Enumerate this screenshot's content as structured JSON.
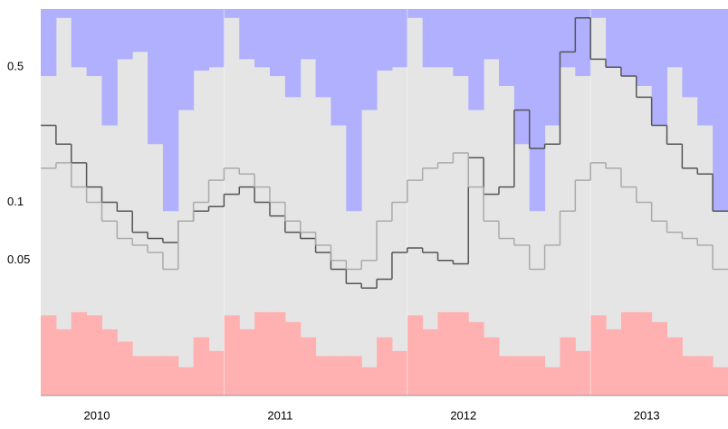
{
  "chart_data": {
    "type": "step",
    "log_y": true,
    "ylim": [
      0.01,
      1
    ],
    "yticks": [
      0.05,
      0.1,
      0.5
    ],
    "xlim": [
      2010,
      2013.75
    ],
    "xticks": [
      2010,
      2011,
      2012,
      2013
    ],
    "background": "#e5e5e5",
    "series": [
      {
        "fill": "above",
        "color": "#b0b0ff",
        "values": [
          0.45,
          0.9,
          0.5,
          0.45,
          0.25,
          0.55,
          0.6,
          0.2,
          0.09,
          0.3,
          0.48,
          0.5,
          0.9,
          0.55,
          0.5,
          0.45,
          0.35,
          0.55,
          0.35,
          0.25,
          0.09,
          0.3,
          0.48,
          0.5,
          0.9,
          0.5,
          0.5,
          0.45,
          0.3,
          0.55,
          0.4,
          0.2,
          0.09,
          0.25,
          0.5,
          0.45,
          0.9,
          0.5,
          0.45,
          0.4,
          0.25,
          0.5,
          0.35,
          0.25,
          0.09
        ]
      },
      {
        "fill": "below",
        "color": "#ffb0b0",
        "values": [
          0.026,
          0.022,
          0.027,
          0.026,
          0.022,
          0.019,
          0.016,
          0.016,
          0.016,
          0.014,
          0.02,
          0.017,
          0.026,
          0.022,
          0.027,
          0.027,
          0.024,
          0.02,
          0.016,
          0.016,
          0.016,
          0.014,
          0.02,
          0.017,
          0.026,
          0.022,
          0.027,
          0.027,
          0.024,
          0.02,
          0.016,
          0.016,
          0.016,
          0.014,
          0.02,
          0.017,
          0.026,
          0.022,
          0.027,
          0.027,
          0.024,
          0.02,
          0.016,
          0.016,
          0.014
        ]
      },
      {
        "fill": "none",
        "color": "#555555",
        "values": [
          0.25,
          0.2,
          0.16,
          0.12,
          0.1,
          0.09,
          0.07,
          0.065,
          0.062,
          0.08,
          0.09,
          0.095,
          0.11,
          0.12,
          0.1,
          0.085,
          0.07,
          0.065,
          0.055,
          0.045,
          0.038,
          0.036,
          0.04,
          0.055,
          0.058,
          0.055,
          0.05,
          0.048,
          0.17,
          0.11,
          0.12,
          0.3,
          0.19,
          0.2,
          0.6,
          0.9,
          0.55,
          0.5,
          0.45,
          0.35,
          0.25,
          0.2,
          0.15,
          0.14,
          0.09
        ]
      },
      {
        "fill": "none",
        "color": "#aaaaaa",
        "values": [
          0.15,
          0.16,
          0.12,
          0.1,
          0.08,
          0.065,
          0.06,
          0.055,
          0.045,
          0.08,
          0.1,
          0.13,
          0.15,
          0.14,
          0.12,
          0.1,
          0.08,
          0.07,
          0.06,
          0.05,
          0.045,
          0.05,
          0.08,
          0.1,
          0.13,
          0.15,
          0.16,
          0.18,
          0.12,
          0.08,
          0.065,
          0.06,
          0.045,
          0.06,
          0.09,
          0.13,
          0.16,
          0.15,
          0.12,
          0.1,
          0.08,
          0.07,
          0.065,
          0.06,
          0.045
        ]
      }
    ]
  }
}
